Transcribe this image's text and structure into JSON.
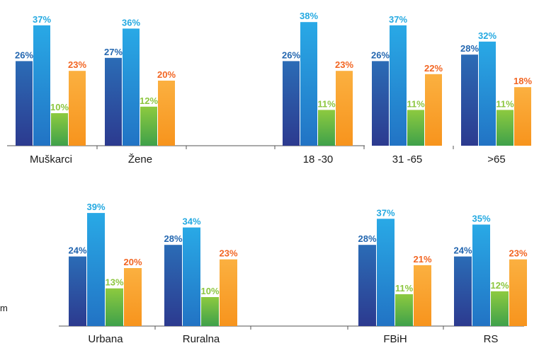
{
  "colors": {
    "series_dark_blue": "#2f4fa6",
    "series_light_blue": "#29a8e6",
    "series_green": "#7cc242",
    "series_orange": "#f7941d",
    "label_dark_blue": "#2467b0",
    "label_light_blue": "#24a9e1",
    "label_green": "#8cc63f",
    "label_orange": "#f26522"
  },
  "stray_text": "m",
  "chart_data": [
    {
      "type": "bar",
      "categories": [
        "Muškarci",
        "Žene",
        "",
        "18 -30",
        "31 -65",
        ">65"
      ],
      "series": [
        {
          "values": [
            26,
            27,
            null,
            26,
            26,
            28
          ]
        },
        {
          "values": [
            37,
            36,
            null,
            38,
            37,
            32
          ]
        },
        {
          "values": [
            10,
            12,
            null,
            11,
            11,
            11
          ]
        },
        {
          "values": [
            23,
            20,
            null,
            23,
            22,
            18
          ]
        }
      ],
      "value_labels": [
        [
          "26%",
          "27%",
          "",
          "26%",
          "26%",
          "28%"
        ],
        [
          "37%",
          "36%",
          "",
          "38%",
          "37%",
          "32%"
        ],
        [
          "10%",
          "12%",
          "",
          "11%",
          "11%",
          "11%"
        ],
        [
          "23%",
          "20%",
          "",
          "23%",
          "22%",
          "18%"
        ]
      ],
      "ylim": [
        0,
        40
      ],
      "grid": false
    },
    {
      "type": "bar",
      "categories": [
        "Urbana",
        "Ruralna",
        "",
        "FBiH",
        "RS"
      ],
      "series": [
        {
          "values": [
            24,
            28,
            null,
            28,
            24
          ]
        },
        {
          "values": [
            39,
            34,
            null,
            37,
            35
          ]
        },
        {
          "values": [
            13,
            10,
            null,
            11,
            12
          ]
        },
        {
          "values": [
            20,
            23,
            null,
            21,
            23
          ]
        }
      ],
      "value_labels": [
        [
          "24%",
          "28%",
          "",
          "28%",
          "24%"
        ],
        [
          "39%",
          "34%",
          "",
          "37%",
          "35%"
        ],
        [
          "13%",
          "10%",
          "",
          "11%",
          "12%"
        ],
        [
          "20%",
          "23%",
          "",
          "21%",
          "23%"
        ]
      ],
      "ylim": [
        0,
        40
      ],
      "grid": false
    }
  ]
}
